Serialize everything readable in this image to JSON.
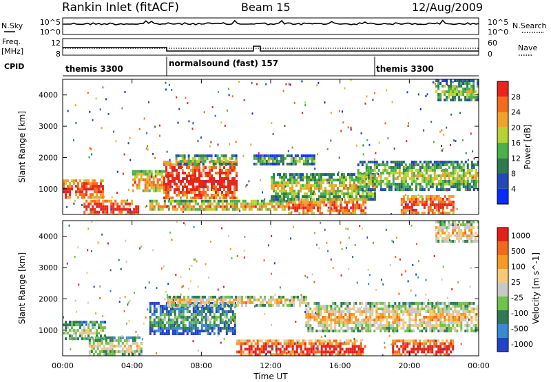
{
  "header": {
    "title": "Rankin Inlet (fitACF)",
    "beam": "Beam 15",
    "date": "12/Aug/2009"
  },
  "status_panels": {
    "nsky_label": "N.Sky",
    "nsky_ticks": [
      "10^5",
      "10^0"
    ],
    "nsearch_label": "N.Search",
    "nsearch_ticks": [
      "10^5",
      "10^0"
    ],
    "freq_label": "Freq.",
    "freq_unit": "[MHz]",
    "freq_ticks": [
      "12",
      "8"
    ],
    "nave_label": "Nave",
    "nave_ticks": [
      "60",
      "0"
    ],
    "cpid_label": "CPID",
    "cpid_segments": [
      {
        "label": "themis 3300",
        "start": 0,
        "end": 6
      },
      {
        "label": "normalsound (fast) 157",
        "start": 6,
        "end": 18
      },
      {
        "label": "themis 3300",
        "start": 18,
        "end": 24
      }
    ]
  },
  "chart_data": [
    {
      "type": "heatmap",
      "panel": "power",
      "ylabel": "Slant Range [km]",
      "yticks": [
        "1000",
        "2000",
        "3000",
        "4000"
      ],
      "ylim": [
        180,
        4500
      ],
      "xlim": [
        0,
        24
      ],
      "colorbar": {
        "label": "Power [dB]",
        "ticks": [
          "4",
          "8",
          "12",
          "16",
          "20",
          "24",
          "28"
        ],
        "colors": [
          "#0a2bff",
          "#2547b8",
          "#2f7a4c",
          "#49b04a",
          "#b8d233",
          "#f1a12c",
          "#f56b1c",
          "#e8261c"
        ]
      },
      "regions": [
        {
          "t0": 0.0,
          "t1": 2.3,
          "r0": 700,
          "r1": 1300,
          "level": 0.75
        },
        {
          "t0": 1.2,
          "t1": 4.3,
          "r0": 200,
          "r1": 650,
          "level": 0.8
        },
        {
          "t0": 4.0,
          "t1": 5.8,
          "r0": 900,
          "r1": 1600,
          "level": 0.55
        },
        {
          "t0": 5.8,
          "t1": 10.0,
          "r0": 700,
          "r1": 1900,
          "level": 0.8
        },
        {
          "t0": 6.5,
          "t1": 10.0,
          "r0": 1800,
          "r1": 2100,
          "level": 0.35
        },
        {
          "t0": 5.0,
          "t1": 13.0,
          "r0": 300,
          "r1": 650,
          "level": 0.5
        },
        {
          "t0": 11.0,
          "t1": 14.5,
          "r0": 1800,
          "r1": 2100,
          "level": 0.25
        },
        {
          "t0": 12.0,
          "t1": 18.0,
          "r0": 700,
          "r1": 1500,
          "level": 0.4
        },
        {
          "t0": 13.0,
          "t1": 17.5,
          "r0": 200,
          "r1": 700,
          "level": 0.7
        },
        {
          "t0": 17.0,
          "t1": 24.0,
          "r0": 1000,
          "r1": 1900,
          "level": 0.35
        },
        {
          "t0": 19.5,
          "t1": 22.5,
          "r0": 200,
          "r1": 800,
          "level": 0.75
        },
        {
          "t0": 21.5,
          "t1": 24.0,
          "r0": 3800,
          "r1": 4500,
          "level": 0.3
        }
      ]
    },
    {
      "type": "heatmap",
      "panel": "velocity",
      "ylabel": "Slant Range [km]",
      "yticks": [
        "1000",
        "2000",
        "3000",
        "4000"
      ],
      "ylim": [
        180,
        4500
      ],
      "xlim": [
        0,
        24
      ],
      "xticks": [
        "00:00",
        "04:00",
        "08:00",
        "12:00",
        "16:00",
        "20:00",
        "00:00"
      ],
      "xlabel": "Time UT",
      "colorbar": {
        "label": "Velocity [m s^-1]",
        "ticks": [
          "1000",
          "500",
          "100",
          "25",
          "-25",
          "-100",
          "-500",
          "-1000"
        ],
        "colors": [
          "#2342c8",
          "#3a8ad0",
          "#2f7a55",
          "#6fc24a",
          "#c8c8c8",
          "#f5c979",
          "#f59a24",
          "#ef6a1a",
          "#e4201a"
        ]
      },
      "regions": [
        {
          "t0": 0.0,
          "t1": 2.5,
          "r0": 700,
          "r1": 1300,
          "level": 0.3
        },
        {
          "t0": 1.5,
          "t1": 4.5,
          "r0": 200,
          "r1": 800,
          "level": 0.35
        },
        {
          "t0": 5.0,
          "t1": 10.0,
          "r0": 900,
          "r1": 1900,
          "level": 0.1
        },
        {
          "t0": 6.0,
          "t1": 14.0,
          "r0": 1800,
          "r1": 2100,
          "level": 0.45
        },
        {
          "t0": 10.0,
          "t1": 17.5,
          "r0": 200,
          "r1": 700,
          "level": 0.78
        },
        {
          "t0": 14.0,
          "t1": 24.0,
          "r0": 1000,
          "r1": 1900,
          "level": 0.45
        },
        {
          "t0": 19.0,
          "t1": 22.5,
          "r0": 200,
          "r1": 700,
          "level": 0.82
        },
        {
          "t0": 21.5,
          "t1": 24.0,
          "r0": 3800,
          "r1": 4500,
          "level": 0.45
        }
      ]
    }
  ]
}
